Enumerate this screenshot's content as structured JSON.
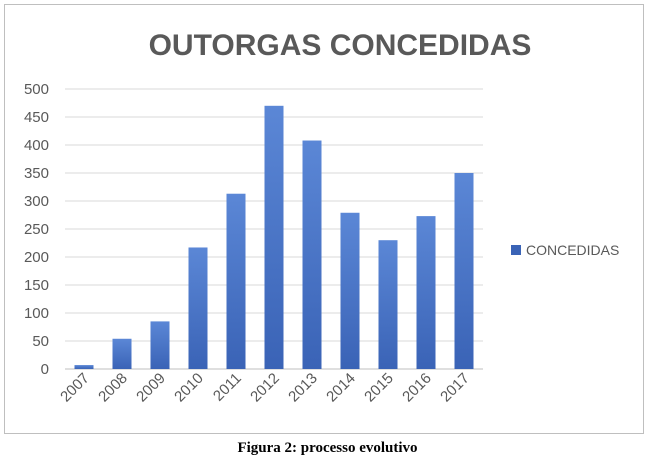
{
  "caption": "Figura 2: processo evolutivo",
  "colors": {
    "bar_top": "#5b87d6",
    "bar_bottom": "#3a63b6",
    "grid": "#d9d9d9",
    "text": "#595959"
  },
  "chart_data": {
    "type": "bar",
    "title": "OUTORGAS CONCEDIDAS",
    "xlabel": "",
    "ylabel": "",
    "categories": [
      "2007",
      "2008",
      "2009",
      "2010",
      "2011",
      "2012",
      "2013",
      "2014",
      "2015",
      "2016",
      "2017"
    ],
    "series": [
      {
        "name": "CONCEDIDAS",
        "values": [
          7,
          54,
          85,
          217,
          313,
          470,
          408,
          279,
          230,
          273,
          350
        ]
      }
    ],
    "ylim": [
      0,
      500
    ],
    "yticks": [
      0,
      50,
      100,
      150,
      200,
      250,
      300,
      350,
      400,
      450,
      500
    ],
    "grid": true,
    "legend": "right"
  }
}
